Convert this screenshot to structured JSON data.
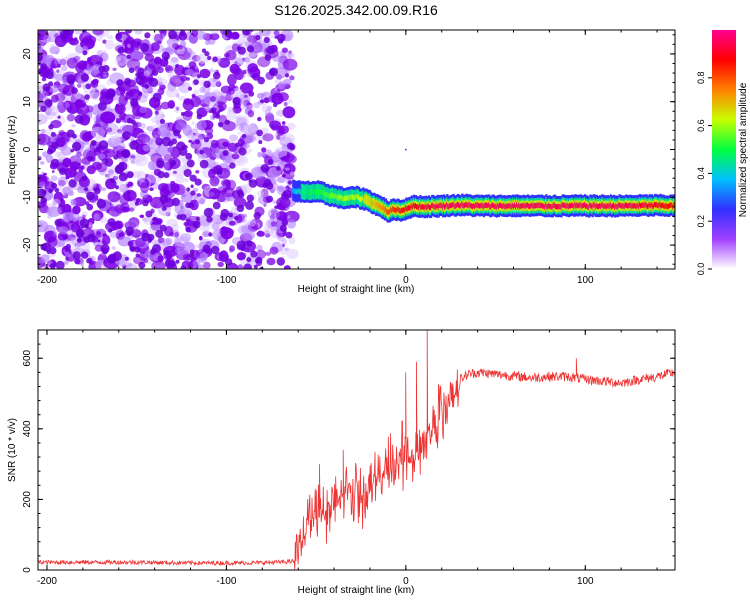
{
  "title": "S126.2025.342.00.09.R16",
  "chart_data": [
    {
      "type": "heatmap",
      "xlabel": "Height of straight line (km)",
      "ylabel": "Frequency (Hz)",
      "xlim": [
        -205,
        150
      ],
      "ylim": [
        -25,
        25
      ],
      "xticks": [
        -200,
        -100,
        0,
        100
      ],
      "yticks": [
        -20,
        -10,
        0,
        10,
        20
      ],
      "noise_region_x": [
        -205,
        -63
      ],
      "signal_track": {
        "x": [
          -63,
          -58,
          -50,
          -42,
          -35,
          -28,
          -22,
          -17,
          -13,
          -10,
          -6,
          -2,
          0,
          5,
          10,
          20,
          30,
          40,
          60,
          80,
          100,
          120,
          140,
          150
        ],
        "freq": [
          -8.5,
          -9,
          -8.8,
          -9.6,
          -10.2,
          -10,
          -10.5,
          -11.5,
          -12.2,
          -13,
          -12.5,
          -12.8,
          -12.3,
          -11.8,
          -12,
          -11.8,
          -11.6,
          -11.8,
          -11.8,
          -11.8,
          -11.8,
          -11.8,
          -11.7,
          -11.8
        ],
        "amplitude": [
          0.35,
          0.45,
          0.5,
          0.55,
          0.6,
          0.6,
          0.65,
          0.7,
          0.75,
          0.8,
          0.85,
          0.85,
          0.9,
          0.9,
          0.92,
          0.95,
          0.95,
          0.95,
          0.95,
          0.95,
          0.95,
          0.95,
          0.9,
          0.85
        ]
      },
      "colorbar": {
        "label": "Normalized spectral amplitude",
        "range": [
          0,
          1
        ],
        "ticks": [
          0.0,
          0.2,
          0.4,
          0.6,
          0.8
        ],
        "tick_labels": [
          "0.0",
          "0.2",
          "0.4",
          "0.6",
          "0.8"
        ],
        "colors": [
          "#ffffff",
          "#a040ff",
          "#3030ff",
          "#00c0ff",
          "#00ff40",
          "#c8ff00",
          "#ff8000",
          "#ff0000",
          "#ff0090"
        ]
      }
    },
    {
      "type": "line",
      "xlabel": "Height of straight line (km)",
      "ylabel": "SNR (10 * v/v)",
      "xlim": [
        -205,
        150
      ],
      "ylim": [
        0,
        680
      ],
      "xticks": [
        -200,
        -100,
        0,
        100
      ],
      "yticks": [
        0,
        200,
        400,
        600
      ],
      "color": "#ee3333",
      "series": [
        {
          "name": "SNR",
          "x": [
            -205,
            -180,
            -150,
            -120,
            -90,
            -70,
            -62,
            -58,
            -52,
            -45,
            -38,
            -30,
            -22,
            -15,
            -8,
            -3,
            2,
            6,
            10,
            12,
            15,
            20,
            25,
            30,
            35,
            40,
            50,
            60,
            70,
            80,
            90,
            100,
            110,
            120,
            130,
            140,
            150
          ],
          "y": [
            22,
            22,
            22,
            20,
            20,
            22,
            25,
            120,
            180,
            200,
            230,
            250,
            240,
            280,
            300,
            340,
            330,
            350,
            400,
            420,
            430,
            470,
            500,
            540,
            555,
            560,
            555,
            550,
            545,
            548,
            548,
            540,
            535,
            530,
            540,
            548,
            560
          ]
        }
      ],
      "spikes": [
        {
          "x": 12,
          "y": 680
        },
        {
          "x": 6,
          "y": 590
        },
        {
          "x": 0,
          "y": 560
        },
        {
          "x": 95,
          "y": 600
        },
        {
          "x": -35,
          "y": 340
        },
        {
          "x": -48,
          "y": 300
        }
      ]
    }
  ]
}
